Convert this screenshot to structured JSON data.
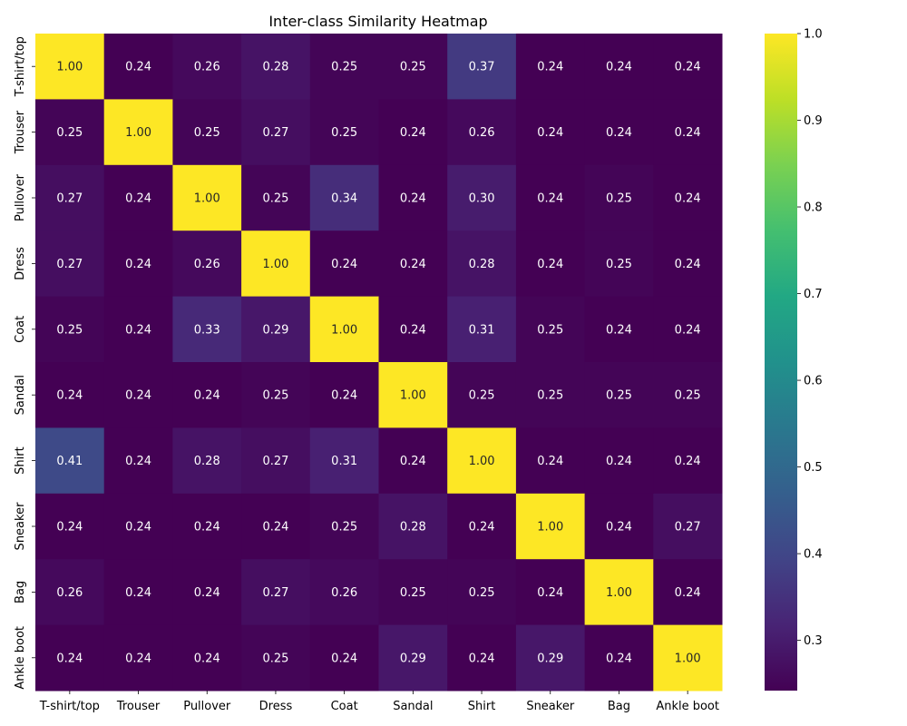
{
  "chart_data": {
    "type": "heatmap",
    "title": "Inter-class Similarity Heatmap",
    "xlabel": "",
    "ylabel": "",
    "x_categories": [
      "T-shirt/top",
      "Trouser",
      "Pullover",
      "Dress",
      "Coat",
      "Sandal",
      "Shirt",
      "Sneaker",
      "Bag",
      "Ankle boot"
    ],
    "y_categories": [
      "T-shirt/top",
      "Trouser",
      "Pullover",
      "Dress",
      "Coat",
      "Sandal",
      "Shirt",
      "Sneaker",
      "Bag",
      "Ankle boot"
    ],
    "values": [
      [
        1.0,
        0.24,
        0.26,
        0.28,
        0.25,
        0.25,
        0.37,
        0.24,
        0.24,
        0.24
      ],
      [
        0.25,
        1.0,
        0.25,
        0.27,
        0.25,
        0.24,
        0.26,
        0.24,
        0.24,
        0.24
      ],
      [
        0.27,
        0.24,
        1.0,
        0.25,
        0.34,
        0.24,
        0.3,
        0.24,
        0.25,
        0.24
      ],
      [
        0.27,
        0.24,
        0.26,
        1.0,
        0.24,
        0.24,
        0.28,
        0.24,
        0.25,
        0.24
      ],
      [
        0.25,
        0.24,
        0.33,
        0.29,
        1.0,
        0.24,
        0.31,
        0.25,
        0.24,
        0.24
      ],
      [
        0.24,
        0.24,
        0.24,
        0.25,
        0.24,
        1.0,
        0.25,
        0.25,
        0.25,
        0.25
      ],
      [
        0.41,
        0.24,
        0.28,
        0.27,
        0.31,
        0.24,
        1.0,
        0.24,
        0.24,
        0.24
      ],
      [
        0.24,
        0.24,
        0.24,
        0.24,
        0.25,
        0.28,
        0.24,
        1.0,
        0.24,
        0.27
      ],
      [
        0.26,
        0.24,
        0.24,
        0.27,
        0.26,
        0.25,
        0.25,
        0.24,
        1.0,
        0.24
      ],
      [
        0.24,
        0.24,
        0.24,
        0.25,
        0.24,
        0.29,
        0.24,
        0.29,
        0.24,
        1.0
      ]
    ],
    "value_format": "2 decimals",
    "colormap": "viridis",
    "colorbar": {
      "range": [
        0.242,
        1.0
      ],
      "ticks": [
        "0.3",
        "0.4",
        "0.5",
        "0.6",
        "0.7",
        "0.8",
        "0.9",
        "1.0"
      ],
      "tick_values": [
        0.3,
        0.4,
        0.5,
        0.6,
        0.7,
        0.8,
        0.9,
        1.0
      ]
    },
    "grid": false,
    "colors": {
      "viridis": [
        "#440154",
        "#482475",
        "#414487",
        "#355f8d",
        "#2a788e",
        "#21918c",
        "#22a884",
        "#44bf70",
        "#7ad151",
        "#bddf26",
        "#fde725"
      ],
      "text_dark": "#262626",
      "text_light": "#ffffff"
    }
  }
}
